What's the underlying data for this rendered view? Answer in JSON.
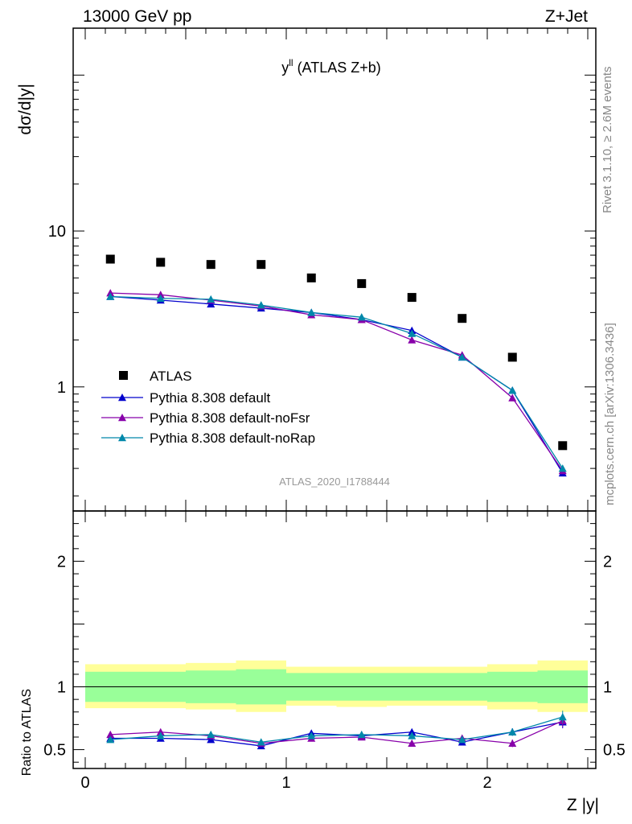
{
  "header": {
    "left": "13000 GeV pp",
    "right": "Z+Jet"
  },
  "side": {
    "rivet": "Rivet 3.1.10, ≥ 2.6M events",
    "mcplots": "mcplots.cern.ch [arXiv:1306.3436]"
  },
  "chart_data": {
    "type": "scatter",
    "title": "y",
    "title_superscript": "ll",
    "title_suffix": " (ATLAS Z+b)",
    "watermark": "ATLAS_2020_I1788444",
    "xlabel": "Z |y|",
    "ylabel": "dσ/d|y|",
    "ratio_ylabel": "Ratio to ATLAS",
    "xlim": [
      -0.06,
      2.54
    ],
    "ylim": [
      0.16,
      200
    ],
    "yscale": "log",
    "ratio_ylim": [
      0.35,
      2.4
    ],
    "x_tick_labels": [
      "0",
      "1",
      "2"
    ],
    "x_ticks": [
      0,
      1,
      2
    ],
    "y_ticks": [
      1,
      10
    ],
    "y_tick_labels": [
      "1",
      "10"
    ],
    "ratio_y_ticks": [
      0.5,
      1,
      2
    ],
    "ratio_y_tick_labels": [
      "0.5",
      "1",
      "2"
    ],
    "bins": [
      [
        0,
        0.25
      ],
      [
        0.25,
        0.5
      ],
      [
        0.5,
        0.75
      ],
      [
        0.75,
        1.0
      ],
      [
        1.0,
        1.25
      ],
      [
        1.25,
        1.5
      ],
      [
        1.5,
        1.75
      ],
      [
        1.75,
        2.0
      ],
      [
        2.0,
        2.25
      ],
      [
        2.25,
        2.5
      ]
    ],
    "x": [
      0.125,
      0.375,
      0.625,
      0.875,
      1.125,
      1.375,
      1.625,
      1.875,
      2.125,
      2.375
    ],
    "data": {
      "name": "ATLAS",
      "color": "#000000",
      "values": [
        6.6,
        6.3,
        6.1,
        6.1,
        5.0,
        4.6,
        3.75,
        2.75,
        1.55,
        0.42
      ]
    },
    "band_inner": [
      [
        0.88,
        1.12
      ],
      [
        0.88,
        1.12
      ],
      [
        0.87,
        1.13
      ],
      [
        0.86,
        1.14
      ],
      [
        0.89,
        1.11
      ],
      [
        0.89,
        1.11
      ],
      [
        0.89,
        1.11
      ],
      [
        0.89,
        1.11
      ],
      [
        0.88,
        1.12
      ],
      [
        0.87,
        1.13
      ]
    ],
    "band_outer": [
      [
        0.83,
        1.18
      ],
      [
        0.83,
        1.18
      ],
      [
        0.82,
        1.19
      ],
      [
        0.8,
        1.21
      ],
      [
        0.85,
        1.16
      ],
      [
        0.84,
        1.16
      ],
      [
        0.85,
        1.16
      ],
      [
        0.85,
        1.16
      ],
      [
        0.82,
        1.18
      ],
      [
        0.8,
        1.21
      ]
    ],
    "series": [
      {
        "name": "Pythia 8.308 default",
        "color": "#0000cc",
        "values": [
          3.8,
          3.6,
          3.4,
          3.2,
          3.0,
          2.7,
          2.3,
          1.55,
          0.95,
          0.28
        ],
        "ratio": [
          0.59,
          0.59,
          0.58,
          0.53,
          0.63,
          0.61,
          0.64,
          0.56,
          0.64,
          0.72
        ],
        "ratio_err": [
          0.015,
          0.015,
          0.015,
          0.015,
          0.015,
          0.02,
          0.02,
          0.02,
          0.03,
          0.05
        ]
      },
      {
        "name": "Pythia 8.308 default-noFsr",
        "color": "#8800aa",
        "values": [
          4.0,
          3.9,
          3.6,
          3.3,
          2.9,
          2.7,
          2.0,
          1.6,
          0.85,
          0.29
        ],
        "ratio": [
          0.62,
          0.64,
          0.61,
          0.55,
          0.59,
          0.6,
          0.55,
          0.59,
          0.55,
          0.73
        ],
        "ratio_err": [
          0.015,
          0.015,
          0.015,
          0.015,
          0.015,
          0.02,
          0.02,
          0.025,
          0.03,
          0.05
        ]
      },
      {
        "name": "Pythia 8.308 default-noRap",
        "color": "#0088aa",
        "values": [
          3.8,
          3.7,
          3.65,
          3.35,
          3.0,
          2.8,
          2.2,
          1.55,
          0.95,
          0.3
        ],
        "ratio": [
          0.58,
          0.61,
          0.62,
          0.56,
          0.61,
          0.62,
          0.61,
          0.58,
          0.64,
          0.76
        ],
        "ratio_err": [
          0.015,
          0.015,
          0.015,
          0.015,
          0.015,
          0.02,
          0.02,
          0.02,
          0.03,
          0.05
        ]
      }
    ],
    "legend_position": "lower-left"
  }
}
